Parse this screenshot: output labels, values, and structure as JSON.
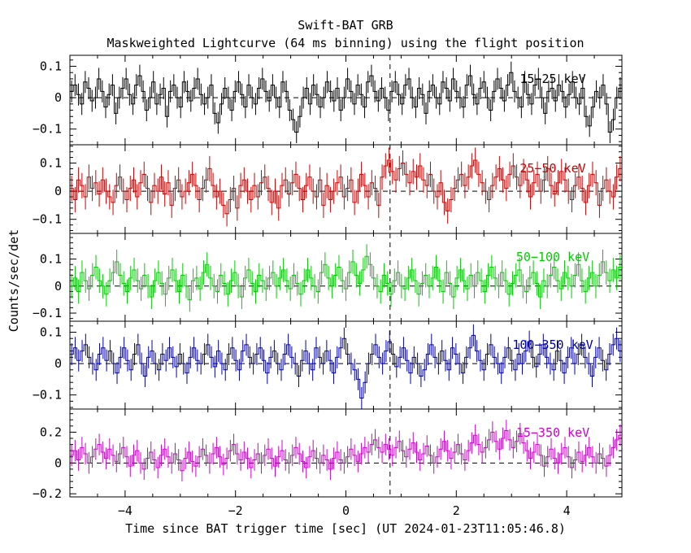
{
  "chart_data": {
    "type": "line",
    "title": "Swift-BAT GRB",
    "subtitle": "Maskweighted Lightcurve (64 ms binning) using the flight position",
    "xlabel": "Time since BAT trigger time [sec] (UT 2024-01-23T11:05:46.8)",
    "ylabel": "Counts/sec/det",
    "xlim": [
      -5.0,
      5.0
    ],
    "x_ticks": [
      -4,
      -2,
      0,
      2,
      4
    ],
    "x_tick_labels": [
      "−4",
      "−2",
      "0",
      "2",
      "4"
    ],
    "vertical_marker_x": 0.8,
    "bin_width_s": 0.064,
    "panels": [
      {
        "name": "15−25 keV",
        "color": "#000000",
        "ylim": [
          -0.15,
          0.135
        ],
        "y_ticks": [
          -0.1,
          0,
          0.1
        ],
        "y_tick_labels": [
          "−0.1",
          "0",
          "0.1"
        ],
        "error": 0.035,
        "values": [
          0.02,
          0.04,
          0.01,
          -0.02,
          0.05,
          0.03,
          -0.01,
          0.0,
          0.06,
          0.02,
          -0.03,
          0.01,
          0.04,
          -0.05,
          0.0,
          0.03,
          0.06,
          0.01,
          -0.02,
          0.04,
          0.07,
          0.02,
          -0.04,
          0.0,
          0.05,
          -0.02,
          0.01,
          0.03,
          -0.06,
          0.02,
          0.04,
          0.0,
          -0.03,
          0.05,
          0.02,
          -0.01,
          0.03,
          0.06,
          0.01,
          -0.02,
          0.0,
          0.04,
          -0.05,
          -0.08,
          -0.02,
          0.03,
          0.0,
          -0.04,
          0.02,
          0.05,
          0.01,
          -0.03,
          0.04,
          0.0,
          -0.02,
          0.03,
          0.06,
          0.02,
          -0.01,
          0.04,
          0.0,
          -0.03,
          0.05,
          0.02,
          -0.04,
          -0.07,
          -0.11,
          -0.06,
          0.0,
          0.03,
          -0.02,
          0.04,
          0.01,
          -0.03,
          0.0,
          0.05,
          0.02,
          -0.01,
          0.03,
          -0.04,
          0.0,
          0.06,
          0.02,
          -0.02,
          0.04,
          0.01,
          -0.03,
          0.05,
          0.07,
          0.02,
          -0.01,
          0.03,
          0.0,
          -0.04,
          0.02,
          0.05,
          0.01,
          -0.02,
          0.04,
          0.06,
          0.0,
          -0.03,
          0.03,
          0.01,
          -0.05,
          0.02,
          0.04,
          0.0,
          -0.02,
          0.05,
          0.03,
          -0.01,
          0.06,
          0.02,
          0.0,
          -0.03,
          0.04,
          0.07,
          0.01,
          -0.02,
          0.03,
          0.05,
          0.0,
          -0.04,
          0.02,
          0.06,
          0.03,
          -0.01,
          0.04,
          0.08,
          0.02,
          0.0,
          -0.03,
          0.05,
          0.01,
          -0.02,
          0.04,
          0.06,
          0.0,
          -0.05,
          0.02,
          0.03,
          -0.01,
          0.04,
          0.02,
          -0.03,
          0.01,
          0.05,
          0.0,
          -0.02,
          0.03,
          -0.06,
          -0.09,
          -0.03,
          0.02,
          0.0,
          0.04,
          -0.02,
          -0.11,
          -0.07,
          0.0,
          0.03
        ]
      },
      {
        "name": "25−50 keV",
        "color": "#cc0000",
        "ylim": [
          -0.15,
          0.165
        ],
        "y_ticks": [
          -0.1,
          0,
          0.1
        ],
        "y_tick_labels": [
          "−0.1",
          "0",
          "0.1"
        ],
        "error": 0.045,
        "values": [
          0.01,
          -0.03,
          0.04,
          0.02,
          -0.02,
          0.05,
          0.01,
          0.03,
          -0.01,
          0.04,
          0.0,
          -0.02,
          -0.04,
          0.02,
          0.05,
          0.0,
          -0.03,
          0.01,
          0.04,
          -0.02,
          0.03,
          0.06,
          0.01,
          -0.04,
          0.02,
          0.0,
          0.05,
          -0.01,
          0.03,
          -0.05,
          0.01,
          0.04,
          -0.02,
          0.0,
          0.03,
          0.06,
          0.02,
          -0.03,
          0.01,
          0.04,
          0.08,
          0.02,
          -0.02,
          0.0,
          -0.05,
          -0.08,
          -0.03,
          0.01,
          -0.06,
          0.02,
          0.04,
          0.0,
          -0.03,
          0.02,
          -0.02,
          0.03,
          0.05,
          0.01,
          -0.04,
          0.0,
          -0.06,
          0.02,
          0.04,
          -0.01,
          0.03,
          0.06,
          0.01,
          -0.03,
          0.02,
          0.05,
          0.0,
          -0.02,
          0.04,
          -0.05,
          0.02,
          -0.03,
          0.0,
          0.03,
          0.05,
          -0.02,
          0.01,
          0.04,
          -0.04,
          0.0,
          0.06,
          0.02,
          -0.02,
          0.03,
          0.01,
          -0.05,
          0.05,
          0.09,
          0.11,
          0.07,
          0.04,
          0.08,
          0.1,
          0.06,
          0.03,
          0.07,
          0.05,
          0.09,
          0.04,
          0.02,
          0.06,
          0.0,
          -0.02,
          0.03,
          -0.04,
          -0.07,
          -0.03,
          0.01,
          0.04,
          0.06,
          0.02,
          0.05,
          0.09,
          0.11,
          0.06,
          0.03,
          0.0,
          -0.03,
          0.02,
          0.05,
          0.08,
          0.04,
          0.01,
          0.06,
          0.09,
          0.05,
          0.02,
          0.07,
          0.04,
          -0.02,
          0.03,
          0.06,
          0.0,
          0.04,
          0.08,
          0.02,
          -0.01,
          0.03,
          0.07,
          0.04,
          0.0,
          -0.03,
          0.02,
          0.05,
          0.01,
          -0.04,
          0.02,
          0.06,
          0.03,
          -0.05,
          0.01,
          0.04,
          0.0,
          -0.02,
          0.05,
          0.08
        ]
      },
      {
        "name": "50−100 keV",
        "color": "#00cc00",
        "ylim": [
          -0.13,
          0.195
        ],
        "y_ticks": [
          -0.1,
          0,
          0.1
        ],
        "y_tick_labels": [
          "−0.1",
          "0",
          "0.1"
        ],
        "error": 0.045,
        "values": [
          0.0,
          0.03,
          -0.02,
          0.05,
          0.02,
          -0.01,
          0.04,
          0.07,
          0.02,
          0.0,
          -0.03,
          0.02,
          0.05,
          0.09,
          0.04,
          0.01,
          -0.02,
          0.03,
          0.06,
          0.02,
          -0.01,
          0.04,
          0.0,
          -0.04,
          0.02,
          0.05,
          0.01,
          -0.03,
          0.03,
          0.06,
          0.02,
          -0.02,
          0.04,
          0.0,
          -0.05,
          0.02,
          0.03,
          -0.01,
          0.05,
          0.08,
          0.03,
          0.0,
          -0.02,
          0.04,
          0.01,
          -0.03,
          0.02,
          0.05,
          0.0,
          -0.04,
          0.03,
          0.06,
          0.01,
          -0.02,
          0.04,
          0.02,
          -0.01,
          0.03,
          0.05,
          0.0,
          0.03,
          0.06,
          0.02,
          -0.01,
          0.04,
          0.01,
          -0.03,
          0.02,
          0.06,
          0.03,
          0.0,
          -0.02,
          0.05,
          0.08,
          0.03,
          0.0,
          0.04,
          0.07,
          0.02,
          -0.01,
          0.05,
          0.09,
          0.04,
          0.01,
          0.06,
          0.11,
          0.08,
          0.03,
          0.0,
          -0.02,
          0.04,
          0.01,
          -0.03,
          0.02,
          0.05,
          0.0,
          -0.01,
          0.03,
          0.06,
          0.02,
          -0.03,
          0.01,
          0.04,
          0.0,
          0.03,
          0.07,
          0.02,
          -0.02,
          0.05,
          0.01,
          -0.04,
          0.03,
          0.06,
          0.02,
          -0.01,
          0.04,
          0.0,
          0.05,
          0.02,
          -0.02,
          0.04,
          0.07,
          0.03,
          0.0,
          0.05,
          0.02,
          -0.03,
          0.01,
          0.04,
          0.06,
          0.0,
          -0.02,
          0.03,
          0.05,
          0.01,
          -0.04,
          0.02,
          0.0,
          0.04,
          0.07,
          0.02,
          -0.01,
          0.05,
          0.03,
          0.0,
          0.04,
          0.08,
          0.02,
          -0.02,
          0.03,
          0.05,
          0.0,
          0.04,
          0.09,
          0.05,
          0.02,
          0.06,
          0.03,
          0.07
        ]
      },
      {
        "name": "100−350 keV",
        "color": "#0000aa",
        "ylim": [
          -0.145,
          0.135
        ],
        "y_ticks": [
          -0.1,
          0,
          0.1
        ],
        "y_tick_labels": [
          "−0.1",
          "0",
          "0.1"
        ],
        "error": 0.035,
        "values": [
          0.03,
          0.05,
          0.01,
          0.04,
          0.06,
          0.02,
          0.0,
          -0.02,
          0.03,
          0.05,
          0.01,
          0.04,
          0.0,
          -0.03,
          0.02,
          0.05,
          0.01,
          -0.02,
          0.03,
          0.06,
          0.0,
          -0.04,
          0.02,
          0.04,
          0.0,
          -0.02,
          0.03,
          0.01,
          0.05,
          0.02,
          -0.01,
          0.03,
          0.0,
          -0.03,
          0.02,
          0.05,
          0.01,
          0.0,
          0.03,
          0.06,
          0.02,
          -0.01,
          0.04,
          0.0,
          -0.02,
          0.03,
          0.05,
          0.01,
          -0.02,
          0.04,
          0.06,
          0.02,
          0.0,
          0.03,
          0.05,
          0.01,
          -0.03,
          0.02,
          0.04,
          0.0,
          -0.02,
          0.03,
          0.06,
          0.02,
          0.0,
          -0.04,
          0.01,
          0.04,
          0.0,
          -0.02,
          0.05,
          0.02,
          0.0,
          0.04,
          0.01,
          -0.03,
          0.02,
          0.05,
          0.08,
          0.03,
          0.0,
          -0.02,
          -0.05,
          -0.11,
          -0.06,
          0.0,
          0.03,
          0.06,
          0.02,
          0.0,
          0.04,
          0.07,
          0.03,
          -0.01,
          0.02,
          0.05,
          0.01,
          -0.03,
          0.02,
          0.0,
          -0.04,
          -0.02,
          0.03,
          0.06,
          0.02,
          0.0,
          0.04,
          0.01,
          -0.02,
          0.05,
          0.03,
          0.0,
          -0.03,
          0.02,
          0.05,
          0.09,
          0.04,
          0.01,
          -0.02,
          0.03,
          0.06,
          0.02,
          0.0,
          -0.03,
          0.02,
          0.05,
          0.01,
          -0.02,
          0.03,
          0.0,
          0.04,
          0.07,
          0.02,
          -0.01,
          0.03,
          0.06,
          0.02,
          0.0,
          -0.02,
          0.04,
          0.01,
          -0.03,
          0.02,
          0.05,
          0.0,
          0.03,
          0.06,
          0.02,
          0.0,
          -0.04,
          0.02,
          0.05,
          0.01,
          -0.02,
          0.03,
          0.06,
          0.08,
          0.04
        ]
      },
      {
        "name": "15−350 keV",
        "color": "#cc00cc",
        "ylim": [
          -0.22,
          0.35
        ],
        "y_ticks": [
          -0.2,
          0,
          0.2
        ],
        "y_tick_labels": [
          "−0.2",
          "0",
          "0.2"
        ],
        "error": 0.07,
        "values": [
          0.05,
          0.08,
          0.02,
          0.1,
          0.06,
          0.0,
          0.04,
          0.09,
          0.12,
          0.07,
          0.03,
          0.09,
          0.05,
          0.01,
          0.06,
          0.1,
          0.04,
          -0.02,
          0.05,
          0.08,
          0.0,
          -0.04,
          0.03,
          0.07,
          0.02,
          -0.03,
          0.05,
          0.09,
          0.04,
          0.0,
          0.06,
          0.02,
          -0.05,
          0.03,
          0.07,
          0.01,
          -0.02,
          0.04,
          0.09,
          0.05,
          0.0,
          0.06,
          0.1,
          0.04,
          -0.01,
          0.03,
          0.08,
          0.12,
          0.06,
          0.02,
          0.07,
          0.03,
          -0.03,
          0.02,
          0.06,
          0.0,
          0.05,
          0.09,
          0.03,
          -0.02,
          0.04,
          0.08,
          0.02,
          0.0,
          0.05,
          0.1,
          0.06,
          0.01,
          -0.03,
          0.04,
          0.08,
          0.03,
          0.0,
          0.05,
          0.02,
          -0.04,
          0.03,
          0.07,
          0.02,
          0.0,
          0.04,
          0.09,
          0.05,
          0.01,
          0.06,
          0.1,
          0.07,
          0.12,
          0.15,
          0.1,
          0.07,
          0.12,
          0.09,
          0.05,
          0.1,
          0.14,
          0.08,
          0.04,
          0.09,
          0.13,
          0.07,
          0.02,
          0.06,
          0.11,
          0.05,
          0.0,
          0.04,
          0.09,
          0.14,
          0.08,
          0.03,
          0.07,
          0.12,
          0.06,
          0.02,
          0.08,
          0.13,
          0.18,
          0.12,
          0.07,
          0.1,
          0.15,
          0.2,
          0.14,
          0.09,
          0.16,
          0.21,
          0.15,
          0.1,
          0.14,
          0.19,
          0.13,
          0.08,
          0.03,
          0.07,
          0.12,
          0.05,
          -0.02,
          0.04,
          0.09,
          0.03,
          0.0,
          0.06,
          0.1,
          0.04,
          -0.03,
          0.02,
          0.07,
          0.01,
          0.05,
          0.1,
          0.04,
          0.0,
          0.06,
          0.03,
          -0.02,
          0.05,
          0.1,
          0.15,
          0.18
        ]
      }
    ]
  }
}
